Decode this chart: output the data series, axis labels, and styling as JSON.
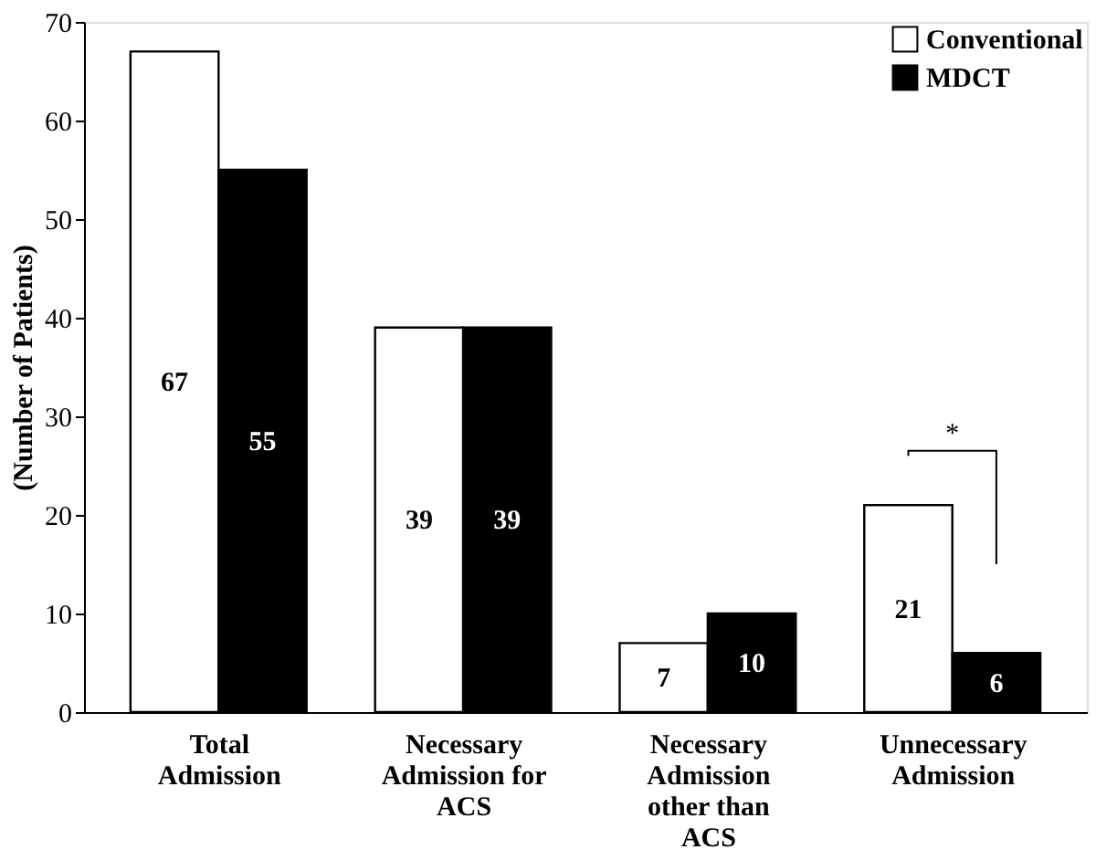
{
  "chart_data": {
    "type": "bar",
    "ylabel": "(Number of Patients)",
    "categories": [
      "Total Admission",
      "Necessary Admission for ACS",
      "Necessary Admission other than ACS",
      "Unnecessary Admission"
    ],
    "series": [
      {
        "name": "Conventional",
        "color": "#ffffff",
        "values": [
          67,
          39,
          7,
          21
        ]
      },
      {
        "name": "MDCT",
        "color": "#000000",
        "values": [
          55,
          39,
          10,
          6
        ]
      }
    ],
    "ylim": [
      0,
      70
    ],
    "yticks": [
      0,
      10,
      20,
      30,
      40,
      50,
      60,
      70
    ],
    "data_labels": true,
    "legend": "top right",
    "grid": false,
    "annotations": [
      "*"
    ]
  }
}
